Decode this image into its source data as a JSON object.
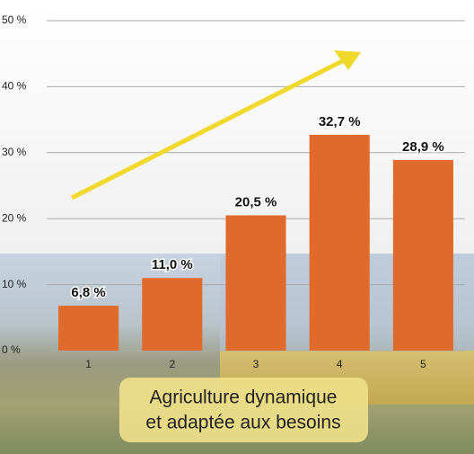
{
  "chart_data": {
    "type": "bar",
    "categories": [
      "1",
      "2",
      "3",
      "4",
      "5"
    ],
    "values": [
      6.8,
      11.0,
      20.5,
      32.7,
      28.9
    ],
    "value_labels": [
      "6,8 %",
      "11,0 %",
      "20,5 %",
      "32,7 %",
      "28,9 %"
    ],
    "color": "#e06a2c",
    "ylim": [
      0,
      50
    ],
    "yticks": [
      {
        "value": 0,
        "label": "0 %"
      },
      {
        "value": 10,
        "label": "10 %"
      },
      {
        "value": 20,
        "label": "20 %"
      },
      {
        "value": 30,
        "label": "30 %"
      },
      {
        "value": 40,
        "label": "40 %"
      },
      {
        "value": 50,
        "label": "50 %"
      }
    ],
    "grid": true,
    "annotation": [
      "Agriculture dynamique",
      "et adaptée aux besoins"
    ]
  }
}
